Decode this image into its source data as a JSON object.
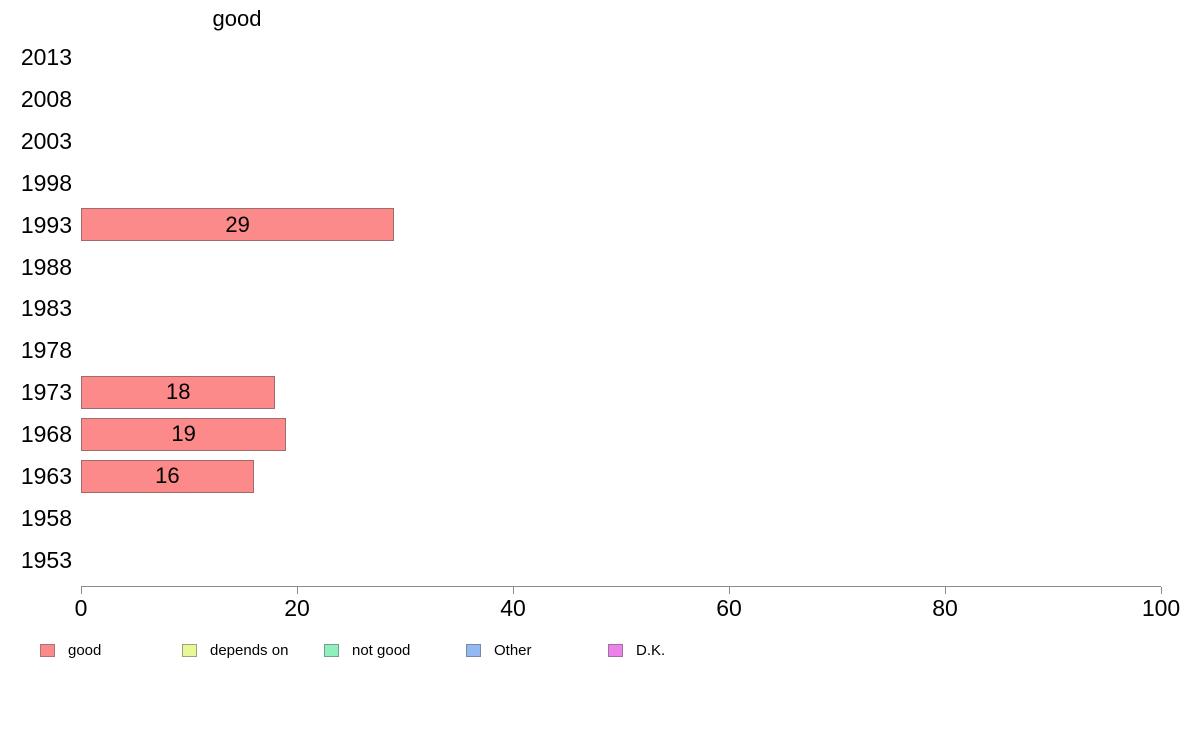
{
  "chart_data": {
    "type": "bar",
    "orientation": "horizontal",
    "title": "good",
    "categories": [
      "2013",
      "2008",
      "2003",
      "1998",
      "1993",
      "1988",
      "1983",
      "1978",
      "1973",
      "1968",
      "1963",
      "1958",
      "1953"
    ],
    "series": [
      {
        "name": "good",
        "color": "#FC8A8A",
        "values": [
          null,
          null,
          null,
          null,
          29,
          null,
          null,
          null,
          18,
          19,
          16,
          null,
          null
        ]
      }
    ],
    "bar_labels_shown": true,
    "xlabel": "",
    "ylabel": "",
    "xlim": [
      0,
      100
    ],
    "x_ticks": [
      0,
      20,
      40,
      60,
      80,
      100
    ],
    "grid": "off",
    "axis_color": "#8c8c8c",
    "text_color": "#000000",
    "legend": {
      "position": "bottom",
      "entries": [
        {
          "label": "good",
          "color": "#FC8A8A"
        },
        {
          "label": "depends on",
          "color": "#E9F798"
        },
        {
          "label": "not good",
          "color": "#8FF0BE"
        },
        {
          "label": "Other",
          "color": "#92BAF2"
        },
        {
          "label": "D.K.",
          "color": "#EC81EC"
        }
      ]
    }
  }
}
